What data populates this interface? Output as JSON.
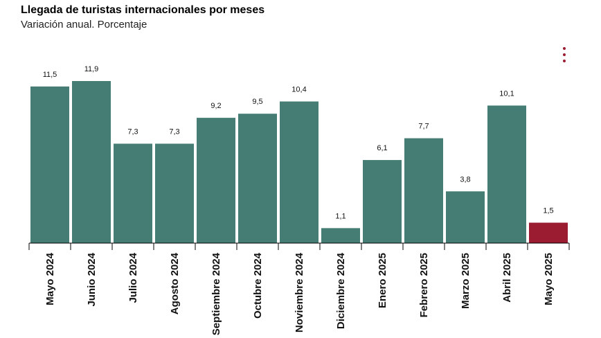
{
  "header": {
    "title": "Llegada de turistas internacionales por meses",
    "subtitle": "Variación anual. Porcentaje"
  },
  "menu": {
    "icon": "more-vertical-icon"
  },
  "colors": {
    "bar": "#457d74",
    "highlight": "#9b1b30",
    "axis": "#000000"
  },
  "chart_data": {
    "type": "bar",
    "title": "Llegada de turistas internacionales por meses",
    "subtitle": "Variación anual. Porcentaje",
    "categories": [
      "Mayo 2024",
      "Junio 2024",
      "Julio 2024",
      "Agosto 2024",
      "Septiembre 2024",
      "Octubre 2024",
      "Noviembre 2024",
      "Diciembre 2024",
      "Enero 2025",
      "Febrero 2025",
      "Marzo 2025",
      "Abril 2025",
      "Mayo 2025"
    ],
    "values": [
      11.5,
      11.9,
      7.3,
      7.3,
      9.2,
      9.5,
      10.4,
      1.1,
      6.1,
      7.7,
      3.8,
      10.1,
      1.5
    ],
    "labels": [
      "11,5",
      "11,9",
      "7,3",
      "7,3",
      "9,2",
      "9,5",
      "10,4",
      "1,1",
      "6,1",
      "7,7",
      "3,8",
      "10,1",
      "1,5"
    ],
    "highlight_index": 12,
    "ylim": [
      0,
      12
    ],
    "grid": false,
    "legend": "none"
  }
}
